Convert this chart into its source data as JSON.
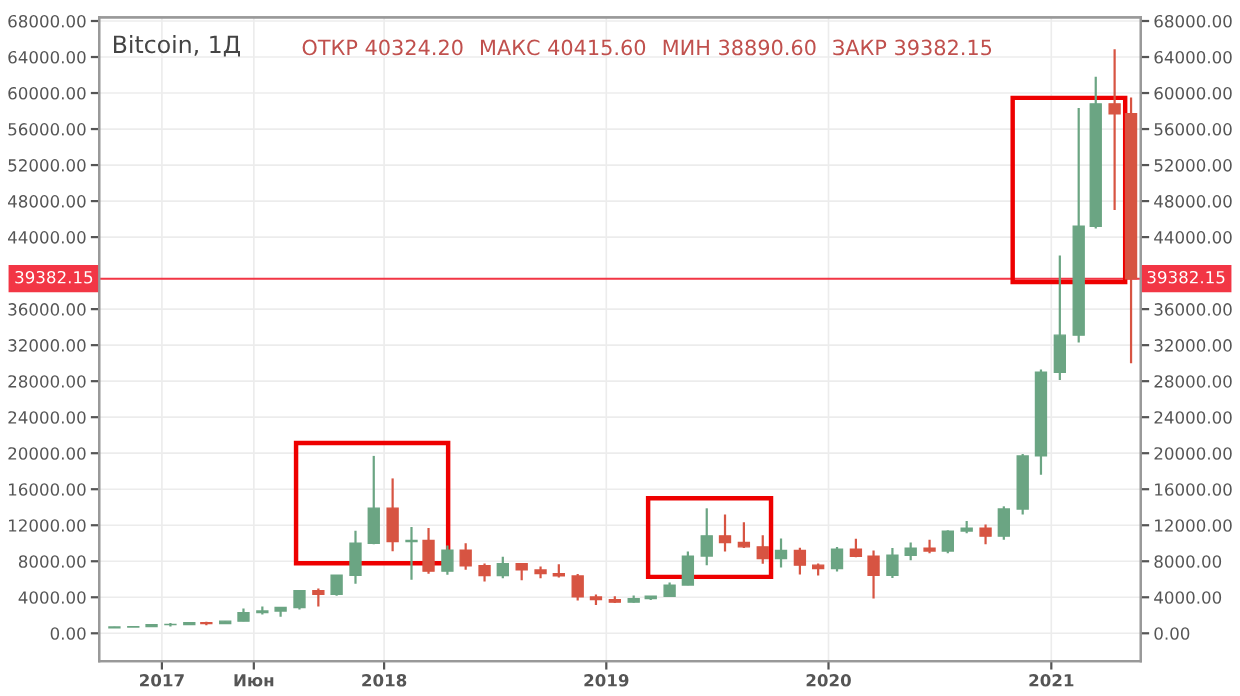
{
  "chart_data": {
    "type": "candlestick",
    "title": "Bitcoin, 1Д",
    "annotations": [
      "ОТКР 40324.20",
      "МАКС 40415.60",
      "МИН 38890.60",
      "ЗАКР 39382.15"
    ],
    "x": [
      "2016-10-15",
      "2016-11-15",
      "2016-12-15",
      "2017-01-15",
      "2017-02-15",
      "2017-03-15",
      "2017-04-15",
      "2017-05-15",
      "2017-06-15",
      "2017-07-15",
      "2017-08-15",
      "2017-09-15",
      "2017-10-15",
      "2017-11-15",
      "2017-12-15",
      "2018-01-15",
      "2018-02-15",
      "2018-03-15",
      "2018-04-15",
      "2018-05-15",
      "2018-06-15",
      "2018-07-15",
      "2018-08-15",
      "2018-09-15",
      "2018-10-15",
      "2018-11-15",
      "2018-12-15",
      "2019-01-15",
      "2019-02-15",
      "2019-03-15",
      "2019-04-15",
      "2019-05-15",
      "2019-06-15",
      "2019-07-15",
      "2019-08-15",
      "2019-09-15",
      "2019-10-15",
      "2019-11-15",
      "2019-12-15",
      "2020-01-15",
      "2020-02-15",
      "2020-03-15",
      "2020-04-15",
      "2020-05-15",
      "2020-06-15",
      "2020-07-15",
      "2020-08-15",
      "2020-09-15",
      "2020-10-15",
      "2020-11-15",
      "2020-12-15",
      "2021-01-15",
      "2021-02-15",
      "2021-03-15",
      "2021-04-15",
      "2021-05-12"
    ],
    "ohlc": [
      [
        609,
        720,
        605,
        700
      ],
      [
        700,
        750,
        690,
        745
      ],
      [
        745,
        975,
        745,
        965
      ],
      [
        965,
        1150,
        750,
        970
      ],
      [
        970,
        1200,
        920,
        1190
      ],
      [
        1190,
        1290,
        890,
        1080
      ],
      [
        1080,
        1350,
        1080,
        1350
      ],
      [
        1350,
        2760,
        1340,
        2300
      ],
      [
        2300,
        2980,
        2100,
        2480
      ],
      [
        2480,
        2900,
        1830,
        2870
      ],
      [
        2870,
        4750,
        2650,
        4740
      ],
      [
        4740,
        4980,
        2970,
        4340
      ],
      [
        4340,
        6470,
        4170,
        6450
      ],
      [
        6450,
        11400,
        5500,
        10000
      ],
      [
        10000,
        19700,
        9900,
        13900
      ],
      [
        13900,
        17200,
        9100,
        10200
      ],
      [
        10200,
        11800,
        5950,
        10300
      ],
      [
        10300,
        11700,
        6600,
        6900
      ],
      [
        6900,
        9750,
        6500,
        9240
      ],
      [
        9240,
        9990,
        7050,
        7500
      ],
      [
        7500,
        7760,
        5750,
        6400
      ],
      [
        6400,
        8500,
        6100,
        7730
      ],
      [
        7730,
        7760,
        5880,
        7040
      ],
      [
        7040,
        7410,
        6120,
        6630
      ],
      [
        6630,
        7680,
        6200,
        6370
      ],
      [
        6370,
        6590,
        3650,
        4040
      ],
      [
        4040,
        4300,
        3150,
        3740
      ],
      [
        3740,
        4110,
        3350,
        3460
      ],
      [
        3460,
        4190,
        3390,
        3850
      ],
      [
        3850,
        4150,
        3690,
        4110
      ],
      [
        4110,
        5640,
        4100,
        5350
      ],
      [
        5350,
        9070,
        5330,
        8570
      ],
      [
        8570,
        13880,
        7560,
        10820
      ],
      [
        10820,
        13200,
        9070,
        10080
      ],
      [
        10080,
        12330,
        9460,
        9600
      ],
      [
        9600,
        10900,
        7710,
        8300
      ],
      [
        8300,
        10540,
        7300,
        9200
      ],
      [
        9200,
        9500,
        6520,
        7570
      ],
      [
        7570,
        7750,
        6430,
        7200
      ],
      [
        7200,
        9580,
        6870,
        9350
      ],
      [
        9350,
        10500,
        8450,
        8550
      ],
      [
        8550,
        9190,
        3850,
        6440
      ],
      [
        6440,
        9460,
        6150,
        8660
      ],
      [
        8660,
        10080,
        8100,
        9460
      ],
      [
        9460,
        10400,
        8900,
        9140
      ],
      [
        9140,
        11440,
        8900,
        11350
      ],
      [
        11350,
        12470,
        11100,
        11680
      ],
      [
        11680,
        12070,
        9880,
        10790
      ],
      [
        10790,
        14100,
        10400,
        13800
      ],
      [
        13800,
        19900,
        13200,
        19700
      ],
      [
        19700,
        29300,
        17600,
        28990
      ],
      [
        28990,
        41950,
        28130,
        33110
      ],
      [
        33110,
        58350,
        32300,
        45200
      ],
      [
        45200,
        61800,
        44960,
        58800
      ],
      [
        58800,
        64850,
        47000,
        57700
      ],
      [
        57700,
        59500,
        30000,
        39382.15
      ]
    ],
    "colors": [
      "#6ba583",
      "#6ba583",
      "#6ba583",
      "#6ba583",
      "#6ba583",
      "#d75442",
      "#6ba583",
      "#6ba583",
      "#6ba583",
      "#6ba583",
      "#6ba583",
      "#d75442",
      "#6ba583",
      "#6ba583",
      "#6ba583",
      "#d75442",
      "#6ba583",
      "#d75442",
      "#6ba583",
      "#d75442",
      "#d75442",
      "#6ba583",
      "#d75442",
      "#d75442",
      "#d75442",
      "#d75442",
      "#d75442",
      "#d75442",
      "#6ba583",
      "#6ba583",
      "#6ba583",
      "#6ba583",
      "#6ba583",
      "#d75442",
      "#d75442",
      "#d75442",
      "#6ba583",
      "#d75442",
      "#d75442",
      "#6ba583",
      "#d75442",
      "#d75442",
      "#6ba583",
      "#6ba583",
      "#d75442",
      "#6ba583",
      "#6ba583",
      "#d75442",
      "#6ba583",
      "#6ba583",
      "#6ba583",
      "#6ba583",
      "#6ba583",
      "#6ba583",
      "#d75442",
      "#d75442"
    ],
    "xlim": [
      "2016-09-20",
      "2021-05-28"
    ],
    "xticks": [
      {
        "value": "2017-01-01",
        "label": "2017"
      },
      {
        "value": "2017-06-01",
        "label": "Июн"
      },
      {
        "value": "2018-01-01",
        "label": "2018"
      },
      {
        "value": "2019-01-01",
        "label": "2019"
      },
      {
        "value": "2020-01-01",
        "label": "2020"
      },
      {
        "value": "2021-01-01",
        "label": "2021"
      }
    ],
    "ylim": [
      -3100,
      68400
    ],
    "yticks": [
      {
        "value": 0,
        "label": "0.00"
      },
      {
        "value": 4000,
        "label": "4000.00"
      },
      {
        "value": 8000,
        "label": "8000.00"
      },
      {
        "value": 12000,
        "label": "12000.00"
      },
      {
        "value": 16000,
        "label": "16000.00"
      },
      {
        "value": 20000,
        "label": "20000.00"
      },
      {
        "value": 24000,
        "label": "24000.00"
      },
      {
        "value": 28000,
        "label": "28000.00"
      },
      {
        "value": 32000,
        "label": "32000.00"
      },
      {
        "value": 36000,
        "label": "36000.00"
      },
      {
        "value": 44000,
        "label": "44000.00"
      },
      {
        "value": 48000,
        "label": "48000.00"
      },
      {
        "value": 52000,
        "label": "52000.00"
      },
      {
        "value": 56000,
        "label": "56000.00"
      },
      {
        "value": 60000,
        "label": "60000.00"
      },
      {
        "value": 64000,
        "label": "64000.00"
      },
      {
        "value": 68000,
        "label": "68000.00"
      }
    ],
    "y2lim": [
      -3100,
      68400
    ],
    "y2ticks": [
      {
        "value": 0,
        "label": "0.00"
      },
      {
        "value": 4000,
        "label": "4000.00"
      },
      {
        "value": 8000,
        "label": "8000.00"
      },
      {
        "value": 12000,
        "label": "12000.00"
      },
      {
        "value": 16000,
        "label": "16000.00"
      },
      {
        "value": 20000,
        "label": "20000.00"
      },
      {
        "value": 24000,
        "label": "24000.00"
      },
      {
        "value": 28000,
        "label": "28000.00"
      },
      {
        "value": 32000,
        "label": "32000.00"
      },
      {
        "value": 36000,
        "label": "36000.00"
      },
      {
        "value": 44000,
        "label": "44000.00"
      },
      {
        "value": 48000,
        "label": "48000.00"
      },
      {
        "value": 52000,
        "label": "52000.00"
      },
      {
        "value": 56000,
        "label": "56000.00"
      },
      {
        "value": 60000,
        "label": "60000.00"
      },
      {
        "value": 64000,
        "label": "64000.00"
      },
      {
        "value": 68000,
        "label": "68000.00"
      }
    ],
    "ref_lines": [
      {
        "axis": "y",
        "value": 39382.15,
        "label": "39382.15",
        "color": "#f23645"
      }
    ],
    "grid": true
  }
}
